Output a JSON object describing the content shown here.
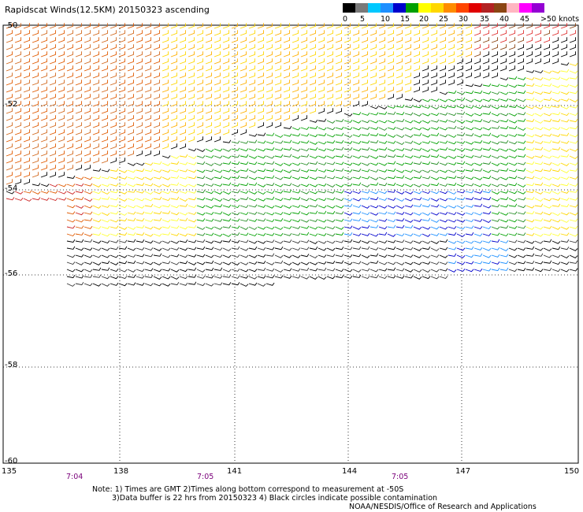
{
  "title": "Rapidscat Winds(12.5KM) 20150323 ascending",
  "legend": {
    "colors": [
      "#000000",
      "#7a7a7a",
      "#00c8ff",
      "#1e90ff",
      "#0000cc",
      "#00a000",
      "#ffff00",
      "#ffd700",
      "#ff8c00",
      "#ff4500",
      "#e00000",
      "#b22222",
      "#8b4513",
      "#ffb6c1",
      "#ff00ff",
      "#9400d3"
    ],
    "labels": [
      "0",
      "5",
      "10",
      "15",
      "20",
      "25",
      "30",
      "35",
      "40",
      "45",
      ">50 knots"
    ]
  },
  "axes": {
    "lat_labels": [
      "-50",
      "-52",
      "-54",
      "-56",
      "-58",
      "-60"
    ],
    "lon_labels": [
      "135",
      "138",
      "141",
      "144",
      "147",
      "150"
    ]
  },
  "times": [
    "7:04",
    "7:05",
    "7:05"
  ],
  "notes": [
    "Note: 1) Times are GMT 2)Times along bottom correspond to measurement at -50S",
    "3)Data buffer is 22 hrs from 20150323 4) Black circles indicate possible contamination",
    "NOAA/NESDIS/Office of Research and Applications"
  ]
}
